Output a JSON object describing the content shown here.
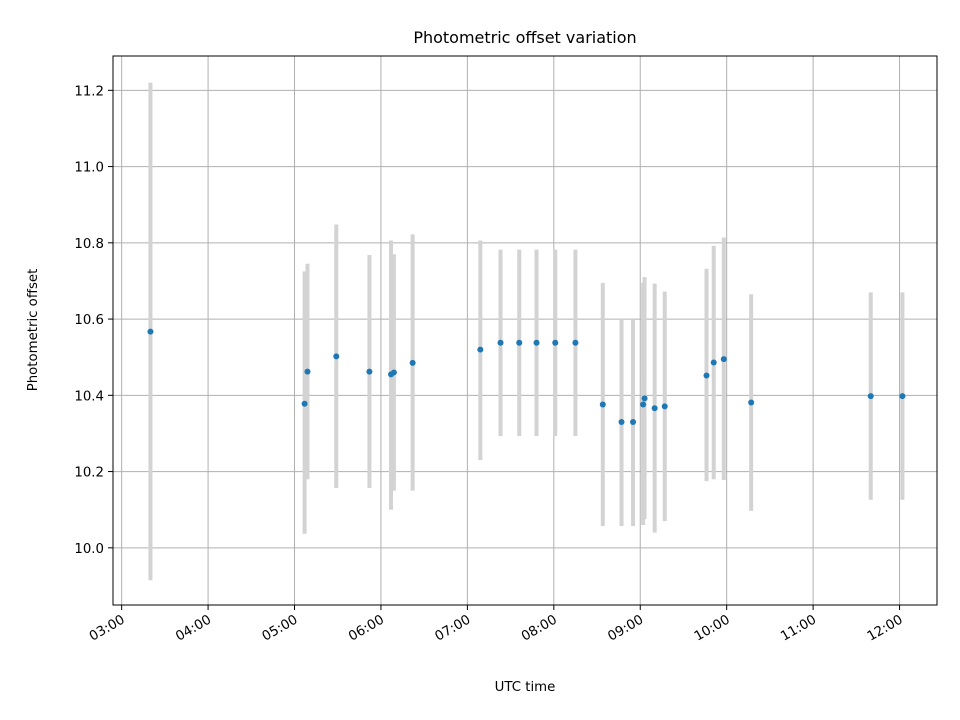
{
  "chart_data": {
    "type": "scatter",
    "title": "Photometric offset variation",
    "xlabel": "UTC time",
    "ylabel": "Photometric offset",
    "x_axis_type": "time",
    "xlim": [
      "02:54",
      "12:26"
    ],
    "ylim": [
      9.85,
      11.29
    ],
    "grid": true,
    "x_ticks": [
      "03:00",
      "04:00",
      "05:00",
      "06:00",
      "07:00",
      "08:00",
      "09:00",
      "10:00",
      "11:00",
      "12:00"
    ],
    "y_ticks": [
      "10.0",
      "10.2",
      "10.4",
      "10.6",
      "10.8",
      "11.0",
      "11.2"
    ],
    "marker_color": "#1f77b4",
    "errorbar_color": "#d3d3d3",
    "points": [
      {
        "t": "03:20",
        "y": 10.567,
        "lo": 9.915,
        "hi": 11.22
      },
      {
        "t": "05:07",
        "y": 10.378,
        "lo": 10.037,
        "hi": 10.725
      },
      {
        "t": "05:09",
        "y": 10.462,
        "lo": 10.18,
        "hi": 10.745
      },
      {
        "t": "05:29",
        "y": 10.502,
        "lo": 10.157,
        "hi": 10.848
      },
      {
        "t": "05:52",
        "y": 10.462,
        "lo": 10.157,
        "hi": 10.768
      },
      {
        "t": "06:07",
        "y": 10.455,
        "lo": 10.1,
        "hi": 10.806
      },
      {
        "t": "06:09",
        "y": 10.46,
        "lo": 10.15,
        "hi": 10.77
      },
      {
        "t": "06:22",
        "y": 10.485,
        "lo": 10.15,
        "hi": 10.822
      },
      {
        "t": "07:09",
        "y": 10.52,
        "lo": 10.23,
        "hi": 10.806
      },
      {
        "t": "07:23",
        "y": 10.538,
        "lo": 10.293,
        "hi": 10.782
      },
      {
        "t": "07:36",
        "y": 10.538,
        "lo": 10.293,
        "hi": 10.782
      },
      {
        "t": "07:48",
        "y": 10.538,
        "lo": 10.293,
        "hi": 10.782
      },
      {
        "t": "08:01",
        "y": 10.538,
        "lo": 10.293,
        "hi": 10.782
      },
      {
        "t": "08:15",
        "y": 10.538,
        "lo": 10.293,
        "hi": 10.782
      },
      {
        "t": "08:34",
        "y": 10.376,
        "lo": 10.057,
        "hi": 10.695
      },
      {
        "t": "08:47",
        "y": 10.33,
        "lo": 10.057,
        "hi": 10.6
      },
      {
        "t": "08:55",
        "y": 10.33,
        "lo": 10.057,
        "hi": 10.6
      },
      {
        "t": "09:02",
        "y": 10.376,
        "lo": 10.06,
        "hi": 10.695
      },
      {
        "t": "09:03",
        "y": 10.392,
        "lo": 10.075,
        "hi": 10.71
      },
      {
        "t": "09:10",
        "y": 10.366,
        "lo": 10.04,
        "hi": 10.693
      },
      {
        "t": "09:17",
        "y": 10.371,
        "lo": 10.07,
        "hi": 10.672
      },
      {
        "t": "09:46",
        "y": 10.452,
        "lo": 10.175,
        "hi": 10.732
      },
      {
        "t": "09:51",
        "y": 10.486,
        "lo": 10.18,
        "hi": 10.792
      },
      {
        "t": "09:58",
        "y": 10.495,
        "lo": 10.178,
        "hi": 10.814
      },
      {
        "t": "10:17",
        "y": 10.381,
        "lo": 10.097,
        "hi": 10.665
      },
      {
        "t": "11:40",
        "y": 10.398,
        "lo": 10.126,
        "hi": 10.67
      },
      {
        "t": "12:02",
        "y": 10.398,
        "lo": 10.126,
        "hi": 10.67
      }
    ]
  }
}
